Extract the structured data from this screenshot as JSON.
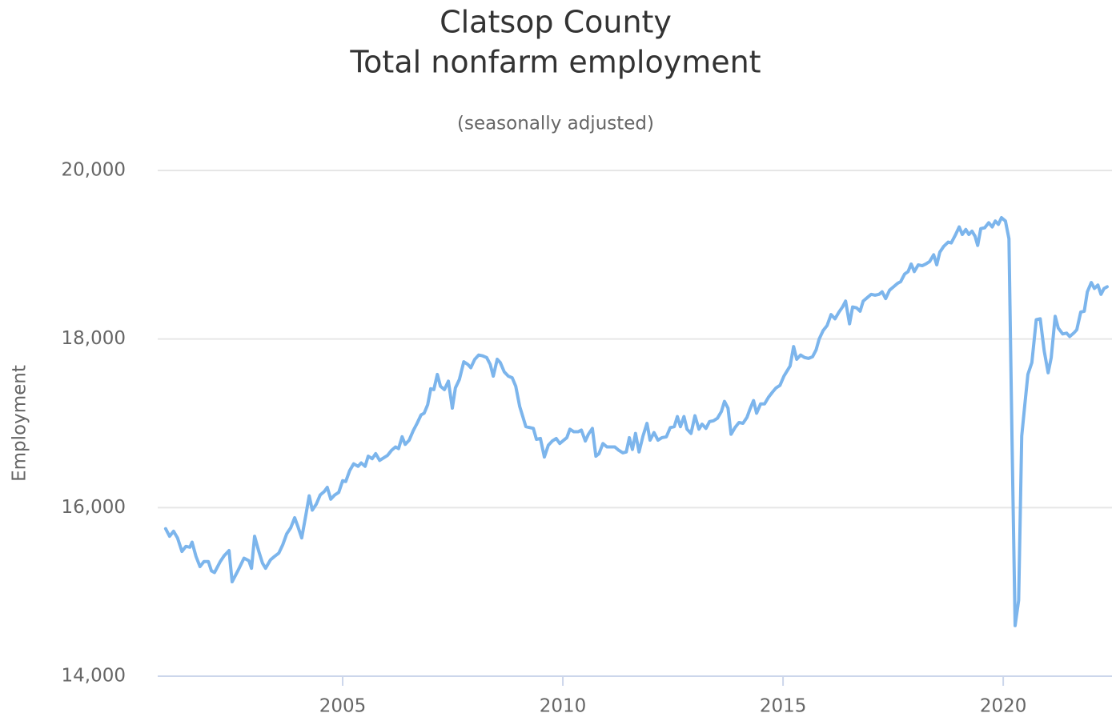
{
  "chart_data": {
    "type": "line",
    "title": [
      "Clatsop County",
      "Total nonfarm employment"
    ],
    "subtitle": "(seasonally adjusted)",
    "y_label": "Employment",
    "color": "#7cb5ec",
    "grid": true,
    "xlim": [
      2000.8,
      2022.47
    ],
    "xticks": [
      2005,
      2010,
      2015,
      2020
    ],
    "ylim": [
      14000,
      20000
    ],
    "yticks": [
      {
        "value": 14000,
        "label": "14,000"
      },
      {
        "value": 16000,
        "label": "16,000"
      },
      {
        "value": 18000,
        "label": "18,000"
      },
      {
        "value": 20000,
        "label": "20,000"
      }
    ],
    "x": [
      2000.98,
      2001.07,
      2001.16,
      2001.25,
      2001.35,
      2001.44,
      2001.53,
      2001.58,
      2001.67,
      2001.76,
      2001.85,
      2001.95,
      2002.02,
      2002.09,
      2002.22,
      2002.31,
      2002.42,
      2002.49,
      2002.62,
      2002.76,
      2002.87,
      2002.93,
      2003.0,
      2003.09,
      2003.18,
      2003.25,
      2003.36,
      2003.45,
      2003.55,
      2003.64,
      2003.73,
      2003.82,
      2003.91,
      2003.98,
      2004.07,
      2004.16,
      2004.24,
      2004.31,
      2004.4,
      2004.49,
      2004.58,
      2004.65,
      2004.73,
      2004.82,
      2004.91,
      2005.0,
      2005.07,
      2005.16,
      2005.25,
      2005.35,
      2005.42,
      2005.51,
      2005.58,
      2005.67,
      2005.75,
      2005.84,
      2005.93,
      2006.02,
      2006.11,
      2006.2,
      2006.27,
      2006.35,
      2006.42,
      2006.51,
      2006.6,
      2006.69,
      2006.78,
      2006.85,
      2006.93,
      2007.0,
      2007.07,
      2007.15,
      2007.22,
      2007.31,
      2007.4,
      2007.49,
      2007.56,
      2007.65,
      2007.75,
      2007.84,
      2007.91,
      2008.0,
      2008.09,
      2008.18,
      2008.27,
      2008.35,
      2008.42,
      2008.51,
      2008.58,
      2008.67,
      2008.76,
      2008.85,
      2008.93,
      2009.02,
      2009.09,
      2009.16,
      2009.25,
      2009.33,
      2009.4,
      2009.49,
      2009.58,
      2009.67,
      2009.76,
      2009.85,
      2009.93,
      2010.02,
      2010.09,
      2010.16,
      2010.25,
      2010.35,
      2010.42,
      2010.51,
      2010.58,
      2010.67,
      2010.75,
      2010.82,
      2010.91,
      2011.0,
      2011.09,
      2011.18,
      2011.27,
      2011.36,
      2011.44,
      2011.51,
      2011.58,
      2011.65,
      2011.73,
      2011.82,
      2011.91,
      2011.98,
      2012.07,
      2012.16,
      2012.25,
      2012.35,
      2012.44,
      2012.53,
      2012.6,
      2012.67,
      2012.75,
      2012.82,
      2012.91,
      2013.0,
      2013.09,
      2013.16,
      2013.25,
      2013.33,
      2013.42,
      2013.51,
      2013.6,
      2013.67,
      2013.75,
      2013.82,
      2013.91,
      2014.0,
      2014.09,
      2014.18,
      2014.25,
      2014.33,
      2014.4,
      2014.49,
      2014.58,
      2014.67,
      2014.76,
      2014.84,
      2014.93,
      2015.02,
      2015.09,
      2015.16,
      2015.24,
      2015.31,
      2015.4,
      2015.49,
      2015.58,
      2015.67,
      2015.75,
      2015.82,
      2015.91,
      2016.0,
      2016.09,
      2016.18,
      2016.27,
      2016.35,
      2016.42,
      2016.51,
      2016.58,
      2016.67,
      2016.75,
      2016.82,
      2016.91,
      2017.0,
      2017.09,
      2017.18,
      2017.25,
      2017.33,
      2017.42,
      2017.51,
      2017.6,
      2017.67,
      2017.76,
      2017.84,
      2017.91,
      2017.98,
      2018.07,
      2018.16,
      2018.24,
      2018.33,
      2018.42,
      2018.49,
      2018.56,
      2018.65,
      2018.75,
      2018.82,
      2018.91,
      2019.0,
      2019.07,
      2019.15,
      2019.22,
      2019.29,
      2019.36,
      2019.42,
      2019.49,
      2019.58,
      2019.67,
      2019.75,
      2019.82,
      2019.89,
      2019.96,
      2020.05,
      2020.13,
      2020.2,
      2020.27,
      2020.35,
      2020.42,
      2020.49,
      2020.56,
      2020.65,
      2020.75,
      2020.84,
      2020.93,
      2021.02,
      2021.09,
      2021.18,
      2021.25,
      2021.35,
      2021.44,
      2021.51,
      2021.6,
      2021.67,
      2021.76,
      2021.84,
      2021.91,
      2022.0,
      2022.07,
      2022.15,
      2022.22,
      2022.29,
      2022.36
    ],
    "values": [
      15750,
      15660,
      15720,
      15640,
      15480,
      15540,
      15530,
      15590,
      15420,
      15300,
      15360,
      15360,
      15250,
      15230,
      15360,
      15430,
      15490,
      15120,
      15250,
      15400,
      15370,
      15280,
      15660,
      15490,
      15340,
      15280,
      15380,
      15420,
      15460,
      15560,
      15690,
      15760,
      15880,
      15780,
      15640,
      15900,
      16140,
      15970,
      16040,
      16150,
      16190,
      16240,
      16100,
      16150,
      16180,
      16320,
      16310,
      16440,
      16520,
      16490,
      16530,
      16490,
      16610,
      16580,
      16640,
      16560,
      16590,
      16620,
      16680,
      16720,
      16700,
      16840,
      16750,
      16800,
      16910,
      17000,
      17100,
      17120,
      17220,
      17410,
      17400,
      17580,
      17440,
      17400,
      17500,
      17180,
      17420,
      17520,
      17730,
      17700,
      17660,
      17760,
      17810,
      17800,
      17780,
      17700,
      17560,
      17760,
      17720,
      17610,
      17560,
      17540,
      17440,
      17200,
      17080,
      16960,
      16950,
      16940,
      16810,
      16820,
      16600,
      16740,
      16790,
      16820,
      16760,
      16800,
      16830,
      16930,
      16900,
      16900,
      16920,
      16790,
      16870,
      16940,
      16610,
      16640,
      16760,
      16720,
      16720,
      16720,
      16680,
      16650,
      16660,
      16830,
      16690,
      16880,
      16660,
      16850,
      17000,
      16800,
      16890,
      16800,
      16830,
      16840,
      16950,
      16960,
      17080,
      16960,
      17080,
      16930,
      16880,
      17090,
      16930,
      16990,
      16940,
      17020,
      17030,
      17060,
      17140,
      17260,
      17180,
      16870,
      16950,
      17010,
      17000,
      17070,
      17170,
      17270,
      17120,
      17230,
      17230,
      17310,
      17370,
      17420,
      17450,
      17560,
      17620,
      17680,
      17910,
      17760,
      17810,
      17780,
      17770,
      17790,
      17870,
      18000,
      18100,
      18160,
      18290,
      18240,
      18320,
      18380,
      18450,
      18180,
      18380,
      18370,
      18330,
      18450,
      18490,
      18530,
      18520,
      18530,
      18560,
      18480,
      18580,
      18620,
      18660,
      18680,
      18770,
      18800,
      18890,
      18800,
      18880,
      18870,
      18890,
      18920,
      19000,
      18880,
      19030,
      19100,
      19150,
      19140,
      19230,
      19330,
      19240,
      19300,
      19240,
      19280,
      19220,
      19110,
      19310,
      19320,
      19380,
      19330,
      19400,
      19360,
      19440,
      19400,
      19190,
      16800,
      14600,
      14900,
      16850,
      17220,
      17580,
      17720,
      18230,
      18240,
      17860,
      17600,
      17780,
      18270,
      18130,
      18060,
      18070,
      18030,
      18070,
      18110,
      18320,
      18330,
      18560,
      18670,
      18600,
      18640,
      18530,
      18600,
      18620
    ]
  }
}
